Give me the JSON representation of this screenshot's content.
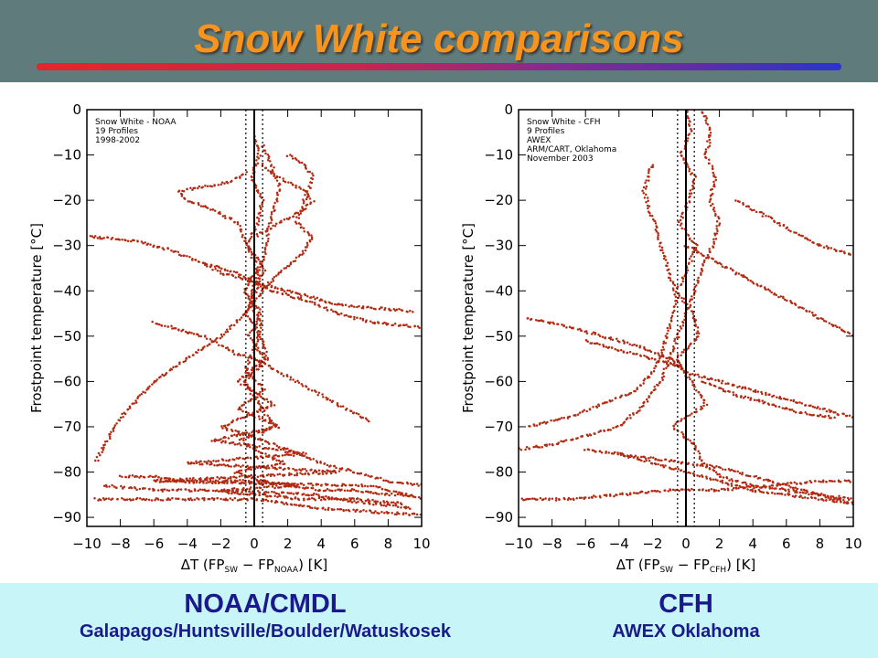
{
  "slide": {
    "title": "Snow White comparisons",
    "captions": [
      {
        "heading": "NOAA/CMDL",
        "subheading": "Galapagos/Huntsville/Boulder/Watuskosek"
      },
      {
        "heading": "CFH",
        "subheading": "AWEX Oklahoma"
      }
    ]
  },
  "colors": {
    "header": "#5f7b7b",
    "title": "#f7941d",
    "footer": "#c8f5f7",
    "caption": "#1a1a8c",
    "data": "#b22a12"
  },
  "chart_data": [
    {
      "type": "scatter",
      "annotation": [
        "Snow White - NOAA",
        "19 Profiles",
        "1998-2002"
      ],
      "xlabel": "ΔT (FPsw − FPNOAA) [K]",
      "xlabel_parts": {
        "lead": "ΔT (FP",
        "sub1": "SW",
        "mid": " − FP",
        "sub2": "NOAA",
        "tail": ") [K]"
      },
      "ylabel": "Frostpoint temperature [°C]",
      "xlim": [
        -10,
        10
      ],
      "ylim": [
        -92,
        0
      ],
      "xticks": [
        -10,
        -8,
        -6,
        -4,
        -2,
        0,
        2,
        4,
        6,
        8,
        10
      ],
      "yticks": [
        0,
        -10,
        -20,
        -30,
        -40,
        -50,
        -60,
        -70,
        -80,
        -90
      ],
      "reference_lines": {
        "solid": 0,
        "dotted": [
          -0.5,
          0.5
        ]
      },
      "profiles": [
        {
          "x": [
            0,
            0.3,
            -0.2,
            0.5,
            0.2,
            -0.4,
            0.6,
            0.1,
            -0.5,
            0.4,
            0.8,
            -0.6,
            0.3,
            1.2,
            -0.8,
            0.5,
            1.8,
            -1.2,
            0.4,
            2.5,
            -2,
            3.5,
            5,
            7,
            9.5
          ],
          "y": [
            -6,
            -10,
            -15,
            -20,
            -25,
            -30,
            -35,
            -40,
            -45,
            -50,
            -55,
            -60,
            -65,
            -70,
            -73,
            -76,
            -78,
            -80,
            -82,
            -83,
            -84,
            -85,
            -86,
            -87,
            -88
          ]
        },
        {
          "x": [
            0.5,
            1,
            1.5,
            1.2,
            0.8,
            0.6,
            0.2,
            -0.3,
            0.4,
            0.1,
            -0.5,
            0.6,
            -1,
            1.5,
            -2.5,
            3,
            -4,
            5,
            -6,
            7,
            9,
            10
          ],
          "y": [
            -8,
            -12,
            -17,
            -22,
            -27,
            -32,
            -37,
            -42,
            -47,
            -52,
            -57,
            -62,
            -66,
            -70,
            -73,
            -76,
            -78,
            -80,
            -82,
            -83,
            -85,
            -86
          ]
        },
        {
          "x": [
            -0.5,
            -1.5,
            -3,
            -4.5,
            -4,
            -2.5,
            -1,
            -0.4,
            0.2,
            -0.6,
            0.4,
            -0.3,
            0.6,
            -1,
            1.2,
            -2,
            2,
            4,
            6,
            8,
            10
          ],
          "y": [
            -14,
            -16,
            -17,
            -18,
            -20,
            -22,
            -25,
            -30,
            -35,
            -40,
            -45,
            -50,
            -55,
            -60,
            -65,
            -70,
            -75,
            -78,
            -80,
            -82,
            -83
          ]
        },
        {
          "x": [
            2,
            3,
            3.5,
            3,
            2.5,
            3.5,
            2.8,
            1.5,
            0.5,
            -0.5,
            -2,
            -4,
            -6,
            -8,
            -9.5
          ],
          "y": [
            -10,
            -12,
            -15,
            -20,
            -25,
            -28,
            -32,
            -36,
            -40,
            -45,
            -50,
            -55,
            -60,
            -68,
            -78
          ]
        },
        {
          "x": [
            -3,
            -2,
            -1,
            0,
            1,
            2,
            3,
            4,
            5,
            6,
            8,
            9.5
          ],
          "y": [
            -34,
            -36,
            -37,
            -38,
            -39,
            -40,
            -41,
            -42,
            -43,
            -43.5,
            -44,
            -44.5
          ]
        },
        {
          "x": [
            0.5,
            1,
            2,
            3,
            3.5,
            3,
            2,
            1,
            0
          ],
          "y": [
            -12,
            -14,
            -16,
            -18,
            -20,
            -22,
            -24,
            -26,
            -28
          ]
        },
        {
          "x": [
            -9.5,
            -8,
            -6,
            -4,
            -2,
            0,
            2,
            4,
            6,
            8,
            10
          ],
          "y": [
            -86,
            -86,
            -86,
            -86,
            -86,
            -86,
            -87,
            -88,
            -88.5,
            -89,
            -89.5
          ]
        },
        {
          "x": [
            -8,
            -6,
            -4,
            -2,
            0,
            2,
            4,
            6,
            8,
            9.5
          ],
          "y": [
            -81,
            -81,
            -82,
            -82,
            -82,
            -83,
            -84,
            -84,
            -85,
            -85
          ]
        },
        {
          "x": [
            -9,
            -6,
            -3,
            0,
            3,
            6,
            9
          ],
          "y": [
            -83,
            -84,
            -84,
            -85,
            -86,
            -86,
            -87
          ]
        },
        {
          "x": [
            -10,
            -7,
            -5,
            -3,
            -1,
            0,
            1,
            3,
            5,
            7,
            10
          ],
          "y": [
            -28,
            -29,
            -31,
            -34,
            -36,
            -38,
            -40,
            -42,
            -45,
            -47,
            -48
          ]
        },
        {
          "x": [
            -6,
            -5,
            -4,
            -3,
            -2,
            -1,
            0,
            1,
            2,
            3,
            4,
            5,
            6,
            7
          ],
          "y": [
            -47,
            -48,
            -49,
            -50,
            -52,
            -54,
            -55,
            -57,
            -59,
            -61,
            -63,
            -65,
            -67,
            -69
          ]
        }
      ]
    },
    {
      "type": "scatter",
      "annotation": [
        "Snow White - CFH",
        "9 Profiles",
        "AWEX",
        "ARM/CART, Oklahoma",
        "November 2003"
      ],
      "xlabel": "ΔT (FPsw − FPCFH) [K]",
      "xlabel_parts": {
        "lead": "ΔT (FP",
        "sub1": "SW",
        "mid": " − FP",
        "sub2": "CFH",
        "tail": ") [K]"
      },
      "ylabel": "Frostpoint temperature [°C]",
      "xlim": [
        -10,
        10
      ],
      "ylim": [
        -92,
        0
      ],
      "xticks": [
        -10,
        -8,
        -6,
        -4,
        -2,
        0,
        2,
        4,
        6,
        8,
        10
      ],
      "yticks": [
        0,
        -10,
        -20,
        -30,
        -40,
        -50,
        -60,
        -70,
        -80,
        -90
      ],
      "reference_lines": {
        "solid": 0,
        "dotted": [
          -0.5,
          0.5
        ]
      },
      "profiles": [
        {
          "x": [
            0,
            0.3,
            -0.3,
            0.5,
            0.2,
            -0.4,
            0.6,
            0.1,
            -0.5,
            0.4,
            0.8,
            -0.6,
            0.3,
            1.2,
            -0.8,
            0.5,
            1,
            2,
            4,
            6,
            8,
            10
          ],
          "y": [
            0,
            -5,
            -10,
            -15,
            -20,
            -25,
            -30,
            -35,
            -40,
            -45,
            -50,
            -55,
            -60,
            -65,
            -70,
            -74,
            -78,
            -81,
            -83,
            -84,
            -85,
            -86
          ]
        },
        {
          "x": [
            1,
            1.5,
            1.2,
            1.8,
            1.4,
            2,
            1.6,
            1,
            0.5,
            0,
            -0.5,
            -1,
            -1.5,
            -2,
            -2.5,
            -4,
            -6,
            -8,
            -10
          ],
          "y": [
            0,
            -5,
            -10,
            -15,
            -20,
            -25,
            -30,
            -35,
            -40,
            -45,
            -50,
            -55,
            -60,
            -62,
            -65,
            -70,
            -72,
            -74,
            -75
          ]
        },
        {
          "x": [
            -2,
            -2.5,
            -2,
            -1.5,
            -1,
            -0.5,
            -1,
            -1.5,
            -2,
            -3,
            -5,
            -7,
            -9.5
          ],
          "y": [
            -12,
            -18,
            -24,
            -30,
            -36,
            -42,
            -48,
            -54,
            -58,
            -62,
            -65,
            -68,
            -70
          ]
        },
        {
          "x": [
            3,
            4,
            5,
            6,
            7,
            8,
            10
          ],
          "y": [
            -20,
            -22,
            -24,
            -26,
            -28,
            -30,
            -32
          ]
        },
        {
          "x": [
            0,
            2,
            4,
            6,
            8,
            10
          ],
          "y": [
            -30,
            -34,
            -38,
            -42,
            -46,
            -50
          ]
        },
        {
          "x": [
            -9.5,
            -7,
            -5,
            -3,
            -1,
            0,
            2,
            4,
            6,
            8,
            10
          ],
          "y": [
            -46,
            -48,
            -50,
            -52,
            -55,
            -58,
            -60,
            -62,
            -64,
            -66,
            -68
          ]
        },
        {
          "x": [
            -10,
            -7,
            -4,
            -1,
            2,
            5,
            8,
            10
          ],
          "y": [
            -86,
            -86,
            -85,
            -84,
            -84,
            -83,
            -82,
            -82
          ]
        },
        {
          "x": [
            -4,
            -2,
            0,
            2,
            4,
            6,
            8,
            10
          ],
          "y": [
            -76,
            -78,
            -80,
            -82,
            -84,
            -85,
            -86,
            -87
          ]
        },
        {
          "x": [
            -6,
            -4,
            -2,
            0,
            2,
            4,
            6,
            8,
            10
          ],
          "y": [
            -75,
            -76,
            -77,
            -78,
            -79,
            -81,
            -83,
            -85,
            -87
          ]
        },
        {
          "x": [
            1,
            3,
            5,
            7,
            9
          ],
          "y": [
            -60,
            -63,
            -65,
            -67,
            -68
          ]
        },
        {
          "x": [
            -6,
            -5,
            -4,
            -3,
            -2,
            -1,
            0
          ],
          "y": [
            -51,
            -52,
            -53,
            -54,
            -55,
            -56,
            -57
          ]
        }
      ]
    }
  ]
}
